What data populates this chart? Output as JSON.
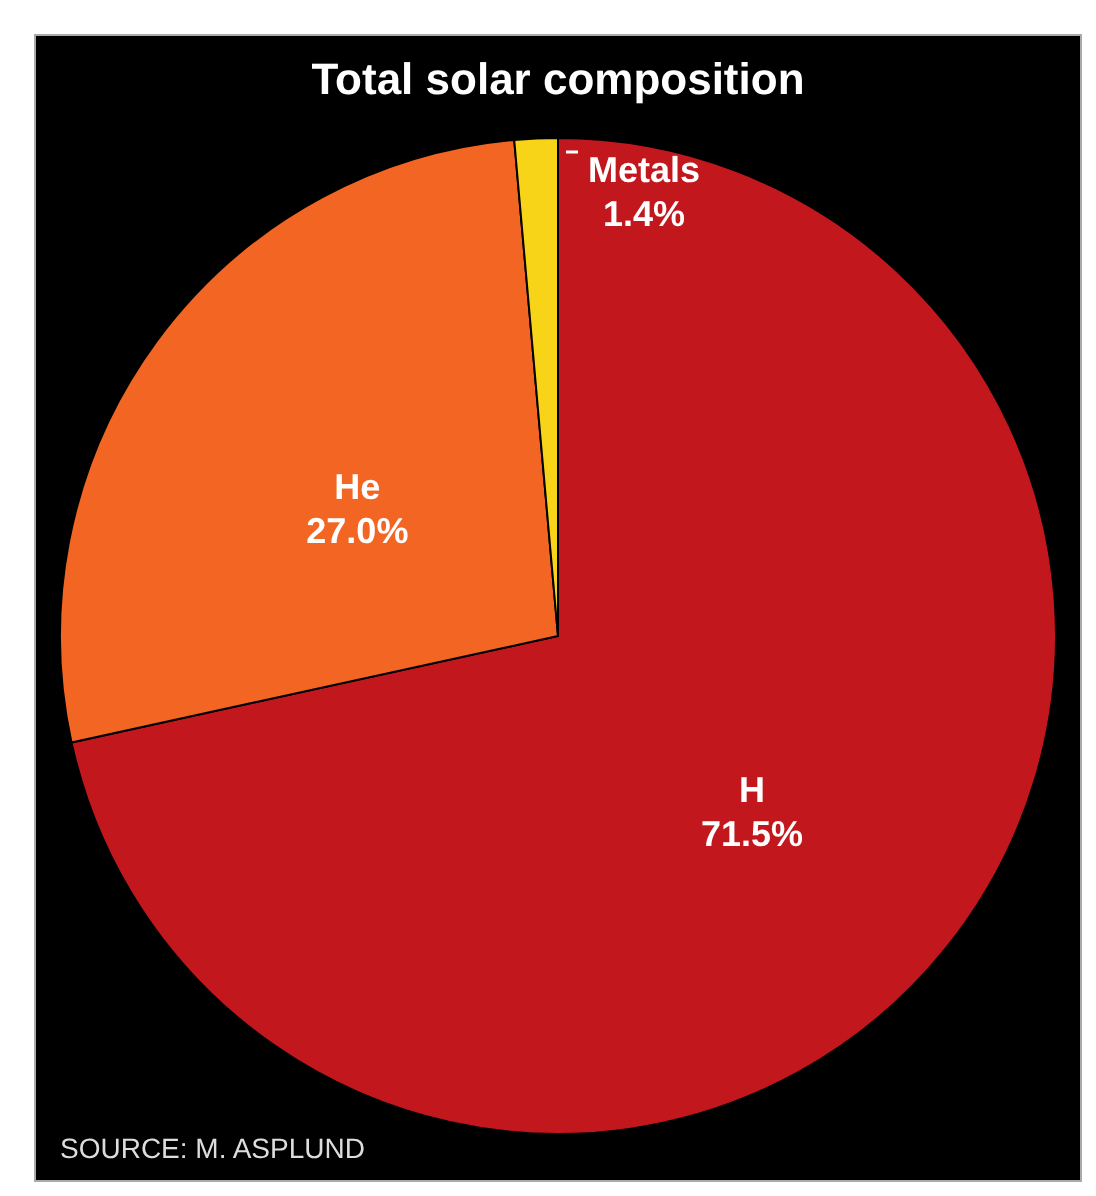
{
  "chart_data": {
    "type": "pie",
    "title": "Total solar composition",
    "categories": [
      "H",
      "He",
      "Metals"
    ],
    "values": [
      71.5,
      27.0,
      1.4
    ],
    "value_labels": [
      "71.5%",
      "27.0%",
      "1.4%"
    ],
    "colors": [
      "#c1171d",
      "#f26522",
      "#f7d417"
    ],
    "annotations": [
      "SOURCE: M. ASPLUND"
    ]
  }
}
